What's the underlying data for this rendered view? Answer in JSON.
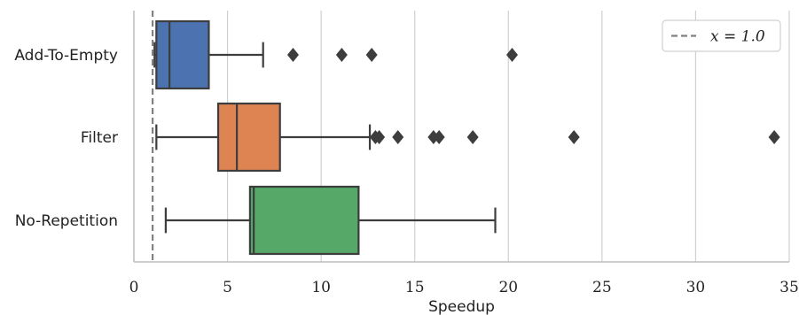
{
  "chart_data": {
    "type": "box",
    "orientation": "horizontal",
    "xlabel": "Speedup",
    "ylabel": "",
    "xlim": [
      0,
      35
    ],
    "x_ticks": [
      0,
      5,
      10,
      15,
      20,
      25,
      30,
      35
    ],
    "x_tick_labels": [
      "0",
      "5",
      "10",
      "15",
      "20",
      "25",
      "30",
      "35"
    ],
    "grid": "vertical",
    "legend": {
      "position": "top-right",
      "entries": [
        {
          "label": "x = 1.0",
          "style": "dashed",
          "color": "#808080"
        }
      ]
    },
    "reference_line": {
      "x": 1.0,
      "style": "dashed",
      "color": "#808080"
    },
    "categories": [
      "Add-To-Empty",
      "Filter",
      "No-Repetition"
    ],
    "series": [
      {
        "name": "Add-To-Empty",
        "color": "#4c72b0",
        "whisker_low": 1.1,
        "q1": 1.2,
        "median": 1.9,
        "q3": 4.0,
        "whisker_high": 6.9,
        "outliers": [
          8.5,
          11.1,
          12.7,
          20.2
        ]
      },
      {
        "name": "Filter",
        "color": "#dd8452",
        "whisker_low": 1.2,
        "q1": 4.5,
        "median": 5.5,
        "q3": 7.8,
        "whisker_high": 12.6,
        "outliers": [
          12.9,
          13.1,
          14.1,
          16.0,
          16.3,
          18.1,
          23.5,
          34.2
        ]
      },
      {
        "name": "No-Repetition",
        "color": "#55a868",
        "whisker_low": 1.7,
        "q1": 6.2,
        "median": 6.4,
        "q3": 12.0,
        "whisker_high": 19.3,
        "outliers": []
      }
    ]
  }
}
